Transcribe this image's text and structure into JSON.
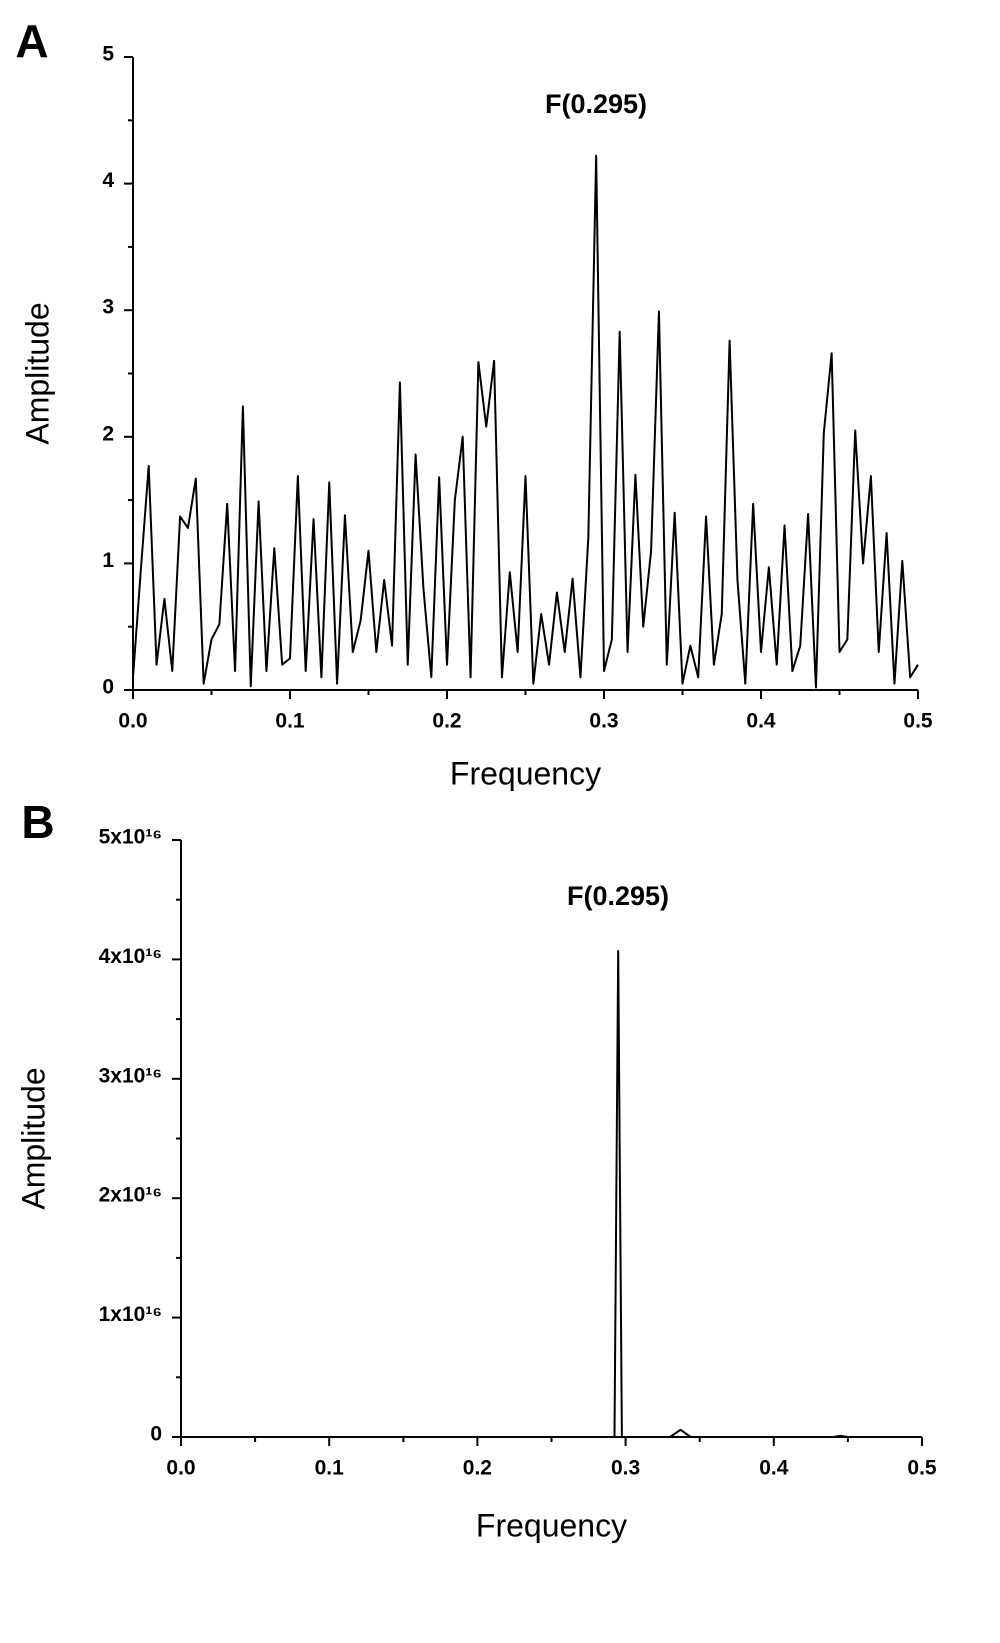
{
  "chart_data": [
    {
      "type": "line",
      "panel_label": "A",
      "annotation": "F(0.295)",
      "xlabel": "Frequency",
      "ylabel": "Amplitude",
      "color": "#000000",
      "x": [
        0,
        0.005,
        0.01,
        0.015,
        0.02,
        0.025,
        0.03,
        0.035,
        0.04,
        0.045,
        0.05,
        0.055,
        0.06,
        0.065,
        0.07,
        0.075,
        0.08,
        0.085,
        0.09,
        0.095,
        0.1,
        0.105,
        0.11,
        0.115,
        0.12,
        0.125,
        0.13,
        0.135,
        0.14,
        0.145,
        0.15,
        0.155,
        0.16,
        0.165,
        0.17,
        0.175,
        0.18,
        0.185,
        0.19,
        0.195,
        0.2,
        0.205,
        0.21,
        0.215,
        0.22,
        0.225,
        0.23,
        0.235,
        0.24,
        0.245,
        0.25,
        0.255,
        0.26,
        0.265,
        0.27,
        0.275,
        0.28,
        0.285,
        0.29,
        0.295,
        0.3,
        0.305,
        0.31,
        0.315,
        0.32,
        0.325,
        0.33,
        0.335,
        0.34,
        0.345,
        0.35,
        0.355,
        0.36,
        0.365,
        0.37,
        0.375,
        0.38,
        0.385,
        0.39,
        0.395,
        0.4,
        0.405,
        0.41,
        0.415,
        0.42,
        0.425,
        0.43,
        0.435,
        0.44,
        0.445,
        0.45,
        0.455,
        0.46,
        0.465,
        0.47,
        0.475,
        0.48,
        0.485,
        0.49,
        0.495,
        0.5
      ],
      "values": [
        0.1,
        0.95,
        1.77,
        0.2,
        0.72,
        0.15,
        1.37,
        1.28,
        1.67,
        0.05,
        0.4,
        0.52,
        1.47,
        0.15,
        2.24,
        0.03,
        1.49,
        0.15,
        1.12,
        0.2,
        0.25,
        1.69,
        0.15,
        1.35,
        0.1,
        1.64,
        0.05,
        1.38,
        0.3,
        0.55,
        1.1,
        0.3,
        0.87,
        0.35,
        2.43,
        0.2,
        1.86,
        0.8,
        0.1,
        1.68,
        0.2,
        1.5,
        2.0,
        0.1,
        2.59,
        2.08,
        2.6,
        0.1,
        0.93,
        0.3,
        1.69,
        0.05,
        0.6,
        0.2,
        0.77,
        0.3,
        0.88,
        0.1,
        1.2,
        4.22,
        0.15,
        0.4,
        2.83,
        0.3,
        1.7,
        0.5,
        1.1,
        2.99,
        0.2,
        1.4,
        0.05,
        0.35,
        0.1,
        1.37,
        0.2,
        0.6,
        2.76,
        0.87,
        0.05,
        1.47,
        0.3,
        0.97,
        0.2,
        1.3,
        0.15,
        0.35,
        1.39,
        0.02,
        2.03,
        2.66,
        0.3,
        0.4,
        2.05,
        1.0,
        1.69,
        0.3,
        1.24,
        0.05,
        1.02,
        0.1,
        0.2
      ],
      "xlim": [
        0,
        0.5
      ],
      "ylim": [
        0,
        5
      ],
      "xticks": [
        {
          "value": 0,
          "label": "0.0"
        },
        0.1,
        0.2,
        0.3,
        0.4,
        0.5
      ],
      "yticks": [
        0,
        1,
        2,
        3,
        4,
        5
      ]
    },
    {
      "type": "line",
      "panel_label": "B",
      "annotation": "F(0.295)",
      "xlabel": "Frequency",
      "ylabel": "Amplitude",
      "color": "#000000",
      "x": [
        0,
        0.29,
        0.2925,
        0.295,
        0.2975,
        0.3,
        0.33,
        0.337,
        0.344,
        0.44,
        0.445,
        0.45,
        0.5
      ],
      "values": [
        0,
        0,
        0,
        4.07e+16,
        0,
        0,
        0,
        600000000000000.0,
        0,
        0,
        100000000000000.0,
        0,
        0
      ],
      "xlim": [
        0,
        0.5
      ],
      "ylim": [
        0,
        5e+16
      ],
      "xticks": [
        {
          "value": 0,
          "label": "0.0"
        },
        0.1,
        0.2,
        0.3,
        0.4,
        0.5
      ],
      "yticks": [
        0,
        {
          "value": 1e+16,
          "label": "1x10¹⁶"
        },
        {
          "value": 2e+16,
          "label": "2x10¹⁶"
        },
        {
          "value": 3e+16,
          "label": "3x10¹⁶"
        },
        {
          "value": 4e+16,
          "label": "4x10¹⁶"
        },
        {
          "value": 5e+16,
          "label": "5x10¹⁶"
        }
      ]
    }
  ]
}
